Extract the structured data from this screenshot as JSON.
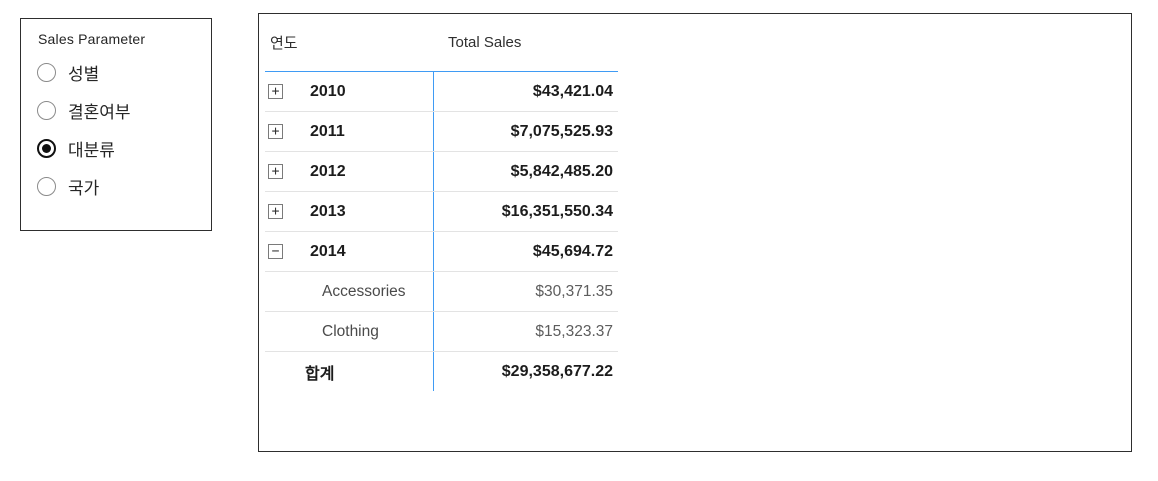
{
  "parameter_panel": {
    "title": "Sales Parameter",
    "options": [
      {
        "label": "성별",
        "selected": false
      },
      {
        "label": "결혼여부",
        "selected": false
      },
      {
        "label": "대분류",
        "selected": true
      },
      {
        "label": "국가",
        "selected": false
      }
    ]
  },
  "matrix": {
    "columns": {
      "rows_header": "연도",
      "values_header": "Total Sales"
    },
    "rows": [
      {
        "label": "2010",
        "value": "$43,421.04",
        "expand": "+"
      },
      {
        "label": "2011",
        "value": "$7,075,525.93",
        "expand": "+"
      },
      {
        "label": "2012",
        "value": "$5,842,485.20",
        "expand": "+"
      },
      {
        "label": "2013",
        "value": "$16,351,550.34",
        "expand": "+"
      },
      {
        "label": "2014",
        "value": "$45,694.72",
        "expand": "−"
      },
      {
        "label": "Accessories",
        "value": "$30,371.35"
      },
      {
        "label": "Clothing",
        "value": "$15,323.37"
      },
      {
        "label": "합계",
        "value": "$29,358,677.22"
      }
    ]
  },
  "colors": {
    "accent_blue": "#3f9bf4",
    "row_separator": "#e3e3e3",
    "panel_border": "#2e2e2e",
    "text_dark": "#1c1c1c",
    "text_sub": "#5d5d5d"
  }
}
